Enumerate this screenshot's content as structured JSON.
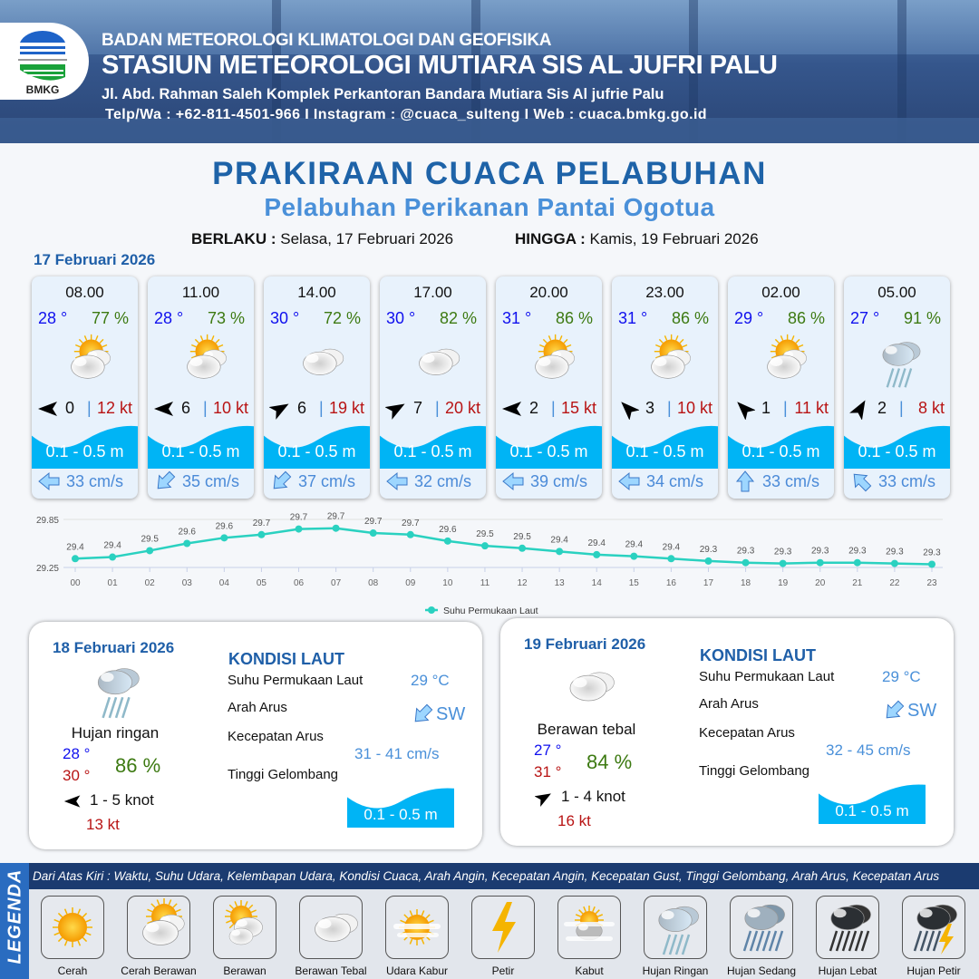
{
  "header": {
    "agency": "BADAN METEOROLOGI KLIMATOLOGI DAN GEOFISIKA",
    "station": "STASIUN METEOROLOGI MUTIARA SIS AL JUFRI PALU",
    "address": "Jl. Abd. Rahman Saleh Komplek Perkantoran Bandara Mutiara Sis Al jufrie Palu",
    "contact": "Telp/Wa : +62-811-4501-966  I  Instagram : @cuaca_sulteng  I  Web : cuaca.bmkg.go.id",
    "logo_text": "BMKG"
  },
  "title": "PRAKIRAAN CUACA PELABUHAN",
  "subtitle": "Pelabuhan Perikanan Pantai Ogotua",
  "validity": {
    "from_label": "BERLAKU :",
    "from_value": "Selasa, 17 Februari 2026",
    "to_label": "HINGGA :",
    "to_value": "Kamis, 19 Februari 2026"
  },
  "day1": {
    "date": "17 Februari 2026",
    "cards": [
      {
        "time": "08.00",
        "temp": "28 °",
        "hum": "77 %",
        "weather": "cerah-berawan",
        "wind_dir_deg": 270,
        "wind": "0",
        "gust": "12 kt",
        "wave": "0.1 - 0.5 m",
        "current_dir": "W",
        "current": "33 cm/s"
      },
      {
        "time": "11.00",
        "temp": "28 °",
        "hum": "73 %",
        "weather": "cerah-berawan",
        "wind_dir_deg": 270,
        "wind": "6",
        "gust": "10 kt",
        "wave": "0.1 - 0.5 m",
        "current_dir": "SW",
        "current": "35 cm/s"
      },
      {
        "time": "14.00",
        "temp": "30 °",
        "hum": "72 %",
        "weather": "berawan-tebal",
        "wind_dir_deg": 60,
        "wind": "6",
        "gust": "19 kt",
        "wave": "0.1 - 0.5 m",
        "current_dir": "SW",
        "current": "37 cm/s"
      },
      {
        "time": "17.00",
        "temp": "30 °",
        "hum": "82 %",
        "weather": "berawan-tebal",
        "wind_dir_deg": 60,
        "wind": "7",
        "gust": "20 kt",
        "wave": "0.1 - 0.5 m",
        "current_dir": "W",
        "current": "32 cm/s"
      },
      {
        "time": "20.00",
        "temp": "31 °",
        "hum": "86 %",
        "weather": "cerah-berawan",
        "wind_dir_deg": 270,
        "wind": "2",
        "gust": "15 kt",
        "wave": "0.1 - 0.5 m",
        "current_dir": "W",
        "current": "39 cm/s"
      },
      {
        "time": "23.00",
        "temp": "31 °",
        "hum": "86 %",
        "weather": "cerah-berawan",
        "wind_dir_deg": 315,
        "wind": "3",
        "gust": "10 kt",
        "wave": "0.1 - 0.5 m",
        "current_dir": "W",
        "current": "34 cm/s"
      },
      {
        "time": "02.00",
        "temp": "29 °",
        "hum": "86 %",
        "weather": "cerah-berawan",
        "wind_dir_deg": 315,
        "wind": "1",
        "gust": "11 kt",
        "wave": "0.1 - 0.5 m",
        "current_dir": "N",
        "current": "33 cm/s"
      },
      {
        "time": "05.00",
        "temp": "27 °",
        "hum": "91 %",
        "weather": "hujan-ringan",
        "wind_dir_deg": 30,
        "wind": "2",
        "gust": "8 kt",
        "wave": "0.1 - 0.5 m",
        "current_dir": "NW",
        "current": "33 cm/s"
      }
    ]
  },
  "chart_data": {
    "type": "line",
    "x": [
      "00",
      "01",
      "02",
      "03",
      "04",
      "05",
      "06",
      "07",
      "08",
      "09",
      "10",
      "11",
      "12",
      "13",
      "14",
      "15",
      "16",
      "17",
      "18",
      "19",
      "20",
      "21",
      "22",
      "23"
    ],
    "series": [
      {
        "name": "Suhu Permukaan Laut",
        "values": [
          29.36,
          29.38,
          29.46,
          29.55,
          29.62,
          29.66,
          29.73,
          29.74,
          29.68,
          29.66,
          29.58,
          29.52,
          29.49,
          29.45,
          29.41,
          29.39,
          29.36,
          29.33,
          29.31,
          29.3,
          29.31,
          29.31,
          29.3,
          29.29
        ],
        "color": "#2ad1c0"
      }
    ],
    "yticks": [
      "29.85",
      "29.25"
    ],
    "ylim": [
      29.25,
      29.85
    ],
    "legend": "bottom",
    "data_labels": true
  },
  "panels": [
    {
      "date": "18 Februari 2026",
      "weather": "hujan-ringan",
      "condition": "Hujan ringan",
      "tmin": "28 °",
      "tmax": "30 °",
      "hum": "86 %",
      "wind_dir_deg": 270,
      "wind": "1  - 5 knot",
      "gust": "13 kt",
      "sea_title": "KONDISI LAUT",
      "sst_label": "Suhu Permukaan Laut",
      "sst": "29 °C",
      "cur_dir_label": "Arah Arus",
      "cur_dir": "SW",
      "cur_spd_label": "Kecepatan Arus",
      "cur_spd": "31  - 41 cm/s",
      "wave_label": "Tinggi Gelombang",
      "wave": "0.1 - 0.5 m"
    },
    {
      "date": "19 Februari 2026",
      "weather": "berawan-tebal",
      "condition": "Berawan tebal",
      "tmin": "27 °",
      "tmax": "31 °",
      "hum": "84 %",
      "wind_dir_deg": 60,
      "wind": "1  - 4 knot",
      "gust": "16 kt",
      "sea_title": "KONDISI LAUT",
      "sst_label": "Suhu Permukaan Laut",
      "sst": "29 °C",
      "cur_dir_label": "Arah Arus",
      "cur_dir": "SW",
      "cur_spd_label": "Kecepatan Arus",
      "cur_spd": "32  - 45 cm/s",
      "wave_label": "Tinggi Gelombang",
      "wave": "0.1 - 0.5 m"
    }
  ],
  "legend": {
    "title": "LEGENDA",
    "description": "Dari Atas Kiri : Waktu, Suhu Udara, Kelembapan Udara, Kondisi Cuaca, Arah Angin, Kecepatan Angin, Kecepatan Gust, Tinggi Gelombang, Arah Arus, Kecepatan Arus",
    "items": [
      {
        "label": "Cerah",
        "icon": "cerah"
      },
      {
        "label": "Cerah Berawan",
        "icon": "cerah-berawan"
      },
      {
        "label": "Berawan",
        "icon": "berawan"
      },
      {
        "label": "Berawan Tebal",
        "icon": "berawan-tebal"
      },
      {
        "label": "Udara Kabur",
        "icon": "udara-kabur"
      },
      {
        "label": "Petir",
        "icon": "petir"
      },
      {
        "label": "Kabut",
        "icon": "kabut"
      },
      {
        "label": "Hujan Ringan",
        "icon": "hujan-ringan"
      },
      {
        "label": "Hujan Sedang",
        "icon": "hujan-sedang"
      },
      {
        "label": "Hujan Lebat",
        "icon": "hujan-lebat"
      },
      {
        "label": "Hujan Petir",
        "icon": "hujan-petir"
      }
    ]
  },
  "colors": {
    "temp": "#1010ee",
    "humidity": "#3d7a12",
    "gust": "#b81414",
    "wave": "#00b4f5",
    "current": "#4a8ad8",
    "title": "#1e63a8"
  }
}
